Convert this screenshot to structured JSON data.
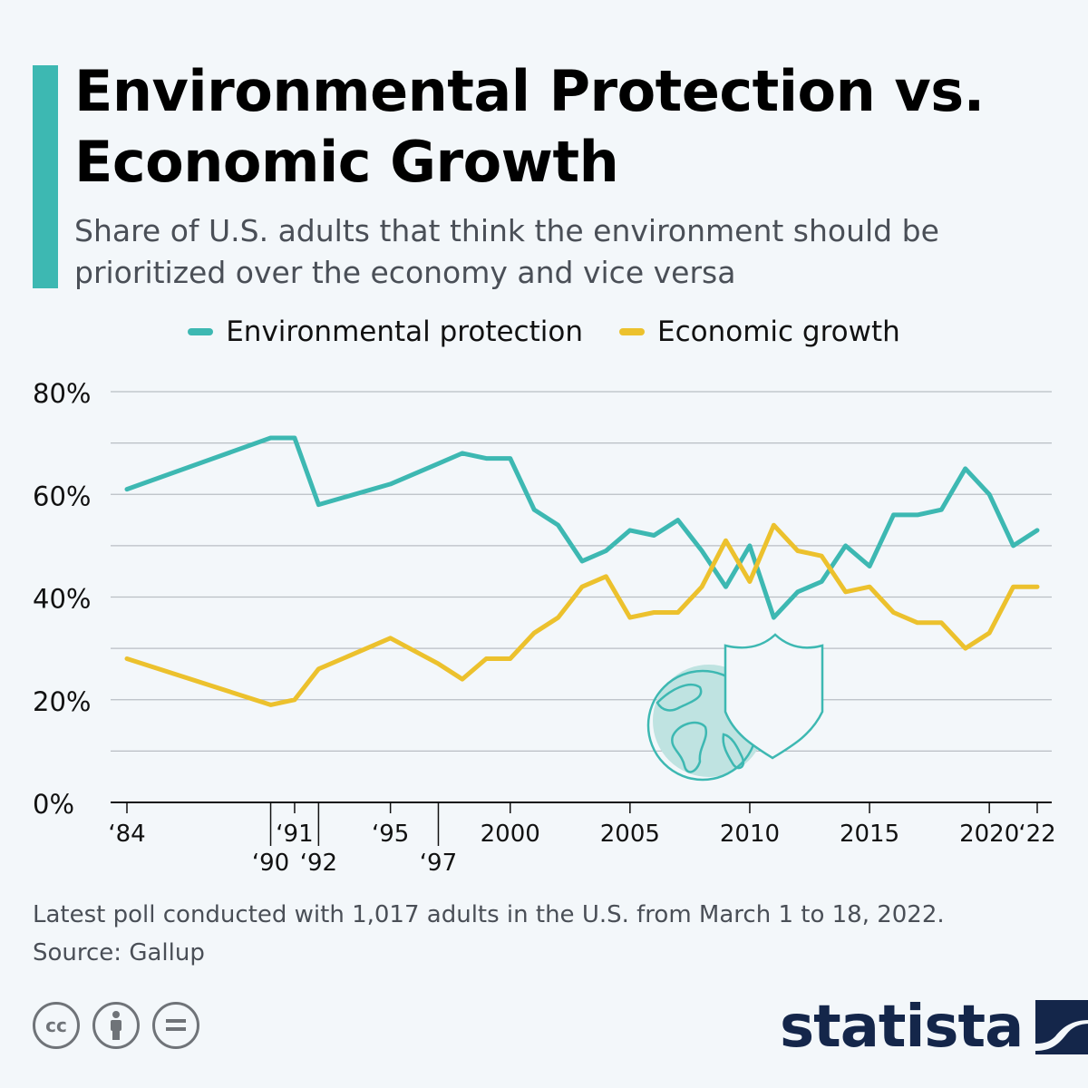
{
  "header": {
    "title": "Environmental Protection vs. Economic Growth",
    "subtitle": "Share of U.S. adults that think the environment should be prioritized over the economy and vice versa"
  },
  "colors": {
    "accent": "#3db8b2",
    "environmental": "#3db8b2",
    "economic": "#ecc12d",
    "grid": "#b9bec4",
    "brand": "#14264a"
  },
  "chart_data": {
    "type": "line",
    "title": "Environmental Protection vs. Economic Growth",
    "xlabel": "",
    "ylabel": "",
    "ylim": [
      0,
      80
    ],
    "yticks": [
      "0%",
      "20%",
      "40%",
      "60%",
      "80%"
    ],
    "legend_position": "top-center",
    "x": [
      1984,
      1990,
      1991,
      1992,
      1995,
      1997,
      1998,
      1999,
      2000,
      2001,
      2002,
      2003,
      2004,
      2005,
      2006,
      2007,
      2008,
      2009,
      2010,
      2011,
      2012,
      2013,
      2014,
      2015,
      2016,
      2017,
      2018,
      2019,
      2020,
      2021,
      2022
    ],
    "xticks": [
      {
        "year": 1984,
        "label": "‘84",
        "row": 1
      },
      {
        "year": 1990,
        "label": "‘90",
        "row": 2
      },
      {
        "year": 1991,
        "label": "‘91",
        "row": 1
      },
      {
        "year": 1992,
        "label": "‘92",
        "row": 2
      },
      {
        "year": 1995,
        "label": "‘95",
        "row": 1
      },
      {
        "year": 1997,
        "label": "‘97",
        "row": 2
      },
      {
        "year": 2000,
        "label": "2000",
        "row": 1
      },
      {
        "year": 2005,
        "label": "2005",
        "row": 1
      },
      {
        "year": 2010,
        "label": "2010",
        "row": 1
      },
      {
        "year": 2015,
        "label": "2015",
        "row": 1
      },
      {
        "year": 2020,
        "label": "2020",
        "row": 1
      },
      {
        "year": 2022,
        "label": "‘22",
        "row": 1
      }
    ],
    "series": [
      {
        "name": "Environmental protection",
        "color": "#3db8b2",
        "values": [
          61,
          71,
          71,
          58,
          62,
          66,
          68,
          67,
          67,
          57,
          54,
          47,
          49,
          53,
          52,
          55,
          49,
          42,
          50,
          36,
          41,
          43,
          50,
          46,
          56,
          56,
          57,
          65,
          60,
          50,
          53
        ]
      },
      {
        "name": "Economic growth",
        "color": "#ecc12d",
        "values": [
          28,
          19,
          20,
          26,
          32,
          27,
          24,
          28,
          28,
          33,
          36,
          42,
          44,
          36,
          37,
          37,
          42,
          51,
          43,
          54,
          49,
          48,
          41,
          42,
          37,
          35,
          35,
          30,
          33,
          42,
          42
        ]
      }
    ]
  },
  "footer": {
    "note": "Latest poll conducted with 1,017 adults in the U.S. from March 1 to 18, 2022.",
    "source": "Source: Gallup",
    "brand": "statista",
    "license_icons": [
      "cc-icon",
      "attribution-icon",
      "no-derivatives-icon"
    ]
  }
}
